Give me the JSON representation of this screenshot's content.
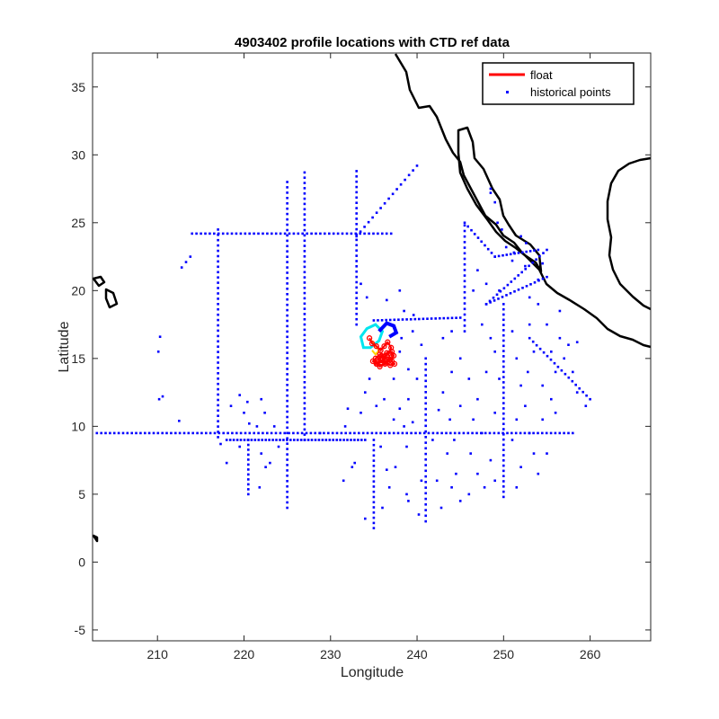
{
  "chart_data": {
    "type": "scatter",
    "title": "4903402 profile locations with CTD ref data",
    "xlabel": "Longitude",
    "ylabel": "Latitude",
    "xlim": [
      202.5,
      267
    ],
    "ylim": [
      -5.8,
      37.5
    ],
    "xticks": [
      210,
      220,
      230,
      240,
      250,
      260
    ],
    "yticks": [
      -5,
      0,
      5,
      10,
      15,
      20,
      25,
      30,
      35
    ],
    "grid": false,
    "legend": {
      "position": "top-right",
      "entries": [
        {
          "label": "float",
          "style": "line",
          "color": "#ff0000"
        },
        {
          "label": "historical points",
          "style": "marker",
          "color": "#0000ff"
        }
      ]
    },
    "colors": {
      "float": "#ff0000",
      "historical": "#0000ff",
      "coast": "#000000",
      "float_track_colors": [
        "#00e5ee",
        "#ffd400",
        "#ff0000"
      ]
    },
    "series": [
      {
        "name": "historical points",
        "style": "scatter",
        "color": "#0000ff",
        "segments": [
          {
            "from": [
              203,
              9.5
            ],
            "to": [
              258,
              9.5
            ],
            "n": 110
          },
          {
            "from": [
              214,
              24.2
            ],
            "to": [
              237,
              24.2
            ],
            "n": 46
          },
          {
            "from": [
              217,
              9.2
            ],
            "to": [
              217,
              24.5
            ],
            "n": 40
          },
          {
            "from": [
              218,
              9.0
            ],
            "to": [
              234,
              9.0
            ],
            "n": 40
          },
          {
            "from": [
              225,
              4.0
            ],
            "to": [
              225,
              28.0
            ],
            "n": 62
          },
          {
            "from": [
              227,
              9.0
            ],
            "to": [
              227,
              28.7
            ],
            "n": 52
          },
          {
            "from": [
              233,
              24.0
            ],
            "to": [
              240,
              29.2
            ],
            "n": 16
          },
          {
            "from": [
              233,
              17.5
            ],
            "to": [
              233,
              28.8
            ],
            "n": 30
          },
          {
            "from": [
              235,
              17.8
            ],
            "to": [
              245,
              18.0
            ],
            "n": 22
          },
          {
            "from": [
              245.5,
              17.0
            ],
            "to": [
              245.5,
              24.8
            ],
            "n": 20
          },
          {
            "from": [
              245.5,
              25.0
            ],
            "to": [
              249,
              22.5
            ],
            "n": 10
          },
          {
            "from": [
              249,
              22.5
            ],
            "to": [
              254,
              23.0
            ],
            "n": 12
          },
          {
            "from": [
              248,
              19.0
            ],
            "to": [
              255,
              23.0
            ],
            "n": 18
          },
          {
            "from": [
              248,
              19.0
            ],
            "to": [
              255,
              21.0
            ],
            "n": 16
          },
          {
            "from": [
              250,
              4.8
            ],
            "to": [
              250,
              19.0
            ],
            "n": 38
          },
          {
            "from": [
              253,
              16.5
            ],
            "to": [
              260,
              12.0
            ],
            "n": 18
          },
          {
            "from": [
              241,
              3.0
            ],
            "to": [
              241,
              15.0
            ],
            "n": 30
          },
          {
            "from": [
              235,
              2.5
            ],
            "to": [
              235,
              9.0
            ],
            "n": 18
          },
          {
            "from": [
              220.5,
              5.0
            ],
            "to": [
              220.5,
              9.0
            ],
            "n": 12
          }
        ],
        "points": [
          [
            210.3,
            16.6
          ],
          [
            210.1,
            15.5
          ],
          [
            210.6,
            12.2
          ],
          [
            210.2,
            12.0
          ],
          [
            212.8,
            21.7
          ],
          [
            213.3,
            22.1
          ],
          [
            213.8,
            22.5
          ],
          [
            212.5,
            10.4
          ],
          [
            217.3,
            8.7
          ],
          [
            218.0,
            7.3
          ],
          [
            219.5,
            8.5
          ],
          [
            220.0,
            11.0
          ],
          [
            220.4,
            11.8
          ],
          [
            220.6,
            10.2
          ],
          [
            221.5,
            10.0
          ],
          [
            222.0,
            12.0
          ],
          [
            222.4,
            11.0
          ],
          [
            223.5,
            10.0
          ],
          [
            222.0,
            8.0
          ],
          [
            222.5,
            7.0
          ],
          [
            221.8,
            5.5
          ],
          [
            223.0,
            7.3
          ],
          [
            224.0,
            8.5
          ],
          [
            218.5,
            11.5
          ],
          [
            219.5,
            12.3
          ],
          [
            231.5,
            6.0
          ],
          [
            232.5,
            7.0
          ],
          [
            228.8,
            9.5
          ],
          [
            231.7,
            10.0
          ],
          [
            232.8,
            7.3
          ],
          [
            232.0,
            11.3
          ],
          [
            233.5,
            11.0
          ],
          [
            234.0,
            12.5
          ],
          [
            234.5,
            13.5
          ],
          [
            235.8,
            8.5
          ],
          [
            236.5,
            6.8
          ],
          [
            236.8,
            5.5
          ],
          [
            237.5,
            7.0
          ],
          [
            238.8,
            8.5
          ],
          [
            239.0,
            12.0
          ],
          [
            240.0,
            13.5
          ],
          [
            238.5,
            10.0
          ],
          [
            237.3,
            10.5
          ],
          [
            238.0,
            11.3
          ],
          [
            239.5,
            10.3
          ],
          [
            240.5,
            6.0
          ],
          [
            238.8,
            5.0
          ],
          [
            240.2,
            3.5
          ],
          [
            242.3,
            6.0
          ],
          [
            243.5,
            8.0
          ],
          [
            244.3,
            9.0
          ],
          [
            242.5,
            11.2
          ],
          [
            243.0,
            12.5
          ],
          [
            244.0,
            14.0
          ],
          [
            245.0,
            15.0
          ],
          [
            246.0,
            13.5
          ],
          [
            247.0,
            12.0
          ],
          [
            246.5,
            10.5
          ],
          [
            247.5,
            9.5
          ],
          [
            248.5,
            7.5
          ],
          [
            247.0,
            6.5
          ],
          [
            246.0,
            5.0
          ],
          [
            245.0,
            4.5
          ],
          [
            244.0,
            5.5
          ],
          [
            248.0,
            14.0
          ],
          [
            249.0,
            15.5
          ],
          [
            248.5,
            16.5
          ],
          [
            247.5,
            17.5
          ],
          [
            251.0,
            17.0
          ],
          [
            251.5,
            15.0
          ],
          [
            252.0,
            13.0
          ],
          [
            252.5,
            11.5
          ],
          [
            253.0,
            9.5
          ],
          [
            253.5,
            8.0
          ],
          [
            252.0,
            7.0
          ],
          [
            251.5,
            5.5
          ],
          [
            254.0,
            6.5
          ],
          [
            255.0,
            8.0
          ],
          [
            254.5,
            10.5
          ],
          [
            255.5,
            12.0
          ],
          [
            256.0,
            14.0
          ],
          [
            255.5,
            15.5
          ],
          [
            256.5,
            16.5
          ],
          [
            257.0,
            15.0
          ],
          [
            256.0,
            11.0
          ],
          [
            253.0,
            17.5
          ],
          [
            254.0,
            19.0
          ],
          [
            248.0,
            20.5
          ],
          [
            247.0,
            21.5
          ],
          [
            246.5,
            20.0
          ],
          [
            249.5,
            20.0
          ],
          [
            244.0,
            17.0
          ],
          [
            243.0,
            16.5
          ],
          [
            239.5,
            17.0
          ],
          [
            238.2,
            16.5
          ],
          [
            238.5,
            18.5
          ],
          [
            238.0,
            15.5
          ],
          [
            245.0,
            11.5
          ],
          [
            249.0,
            11.0
          ],
          [
            249.5,
            13.5
          ],
          [
            251.0,
            9.0
          ],
          [
            251.5,
            10.5
          ],
          [
            244.5,
            6.5
          ],
          [
            242.8,
            4.0
          ],
          [
            239.0,
            4.5
          ],
          [
            236.0,
            4.0
          ],
          [
            234.0,
            3.2
          ],
          [
            241.8,
            9.0
          ],
          [
            243.8,
            10.5
          ],
          [
            246.2,
            8.0
          ],
          [
            247.8,
            5.5
          ],
          [
            249.0,
            6.0
          ],
          [
            252.8,
            14.0
          ],
          [
            253.5,
            15.5
          ],
          [
            254.5,
            13.0
          ],
          [
            255.0,
            17.5
          ],
          [
            256.5,
            18.5
          ],
          [
            257.5,
            16.0
          ],
          [
            258.0,
            14.0
          ],
          [
            258.5,
            12.5
          ],
          [
            259.5,
            11.5
          ],
          [
            258.5,
            16.2
          ],
          [
            233.5,
            20.5
          ],
          [
            234.2,
            19.5
          ],
          [
            236.5,
            19.3
          ],
          [
            238.0,
            20.0
          ],
          [
            239.6,
            18.2
          ],
          [
            240.5,
            16.0
          ],
          [
            237.3,
            13.5
          ],
          [
            236.2,
            12.0
          ],
          [
            235.3,
            11.5
          ],
          [
            239.0,
            14.2
          ],
          [
            248.5,
            27.5
          ],
          [
            249.0,
            26.5
          ],
          [
            248.5,
            27.2
          ],
          [
            249.3,
            25.0
          ],
          [
            249.8,
            24.5
          ],
          [
            250.3,
            23.2
          ],
          [
            251.0,
            22.2
          ],
          [
            252.5,
            21.8
          ],
          [
            254.0,
            20.8
          ],
          [
            253.0,
            19.5
          ],
          [
            252.0,
            24.0
          ],
          [
            252.6,
            23.5
          ],
          [
            251.2,
            22.8
          ],
          [
            254.5,
            22.0
          ]
        ]
      },
      {
        "name": "float",
        "style": "line",
        "color": "#ff0000",
        "x": [
          234.5,
          234.8,
          235.3,
          235.8,
          236.2,
          236.6,
          237.0,
          236.8,
          236.2,
          235.7,
          235.2,
          234.9,
          235.4,
          236.0,
          236.6,
          237.1,
          237.4,
          236.9,
          236.4,
          235.8,
          235.3,
          235.7,
          236.3,
          236.9,
          237.3,
          237.1,
          236.5,
          235.9,
          235.5,
          235.8,
          236.4,
          237.0
        ],
        "y": [
          16.5,
          16.1,
          15.9,
          15.6,
          15.9,
          16.2,
          15.8,
          15.4,
          15.1,
          15.3,
          15.0,
          14.8,
          14.6,
          14.9,
          15.1,
          14.8,
          14.6,
          14.5,
          14.7,
          14.9,
          14.6,
          14.4,
          14.6,
          14.9,
          15.2,
          15.5,
          15.4,
          15.2,
          14.9,
          14.7,
          14.8,
          15.1
        ]
      }
    ]
  }
}
